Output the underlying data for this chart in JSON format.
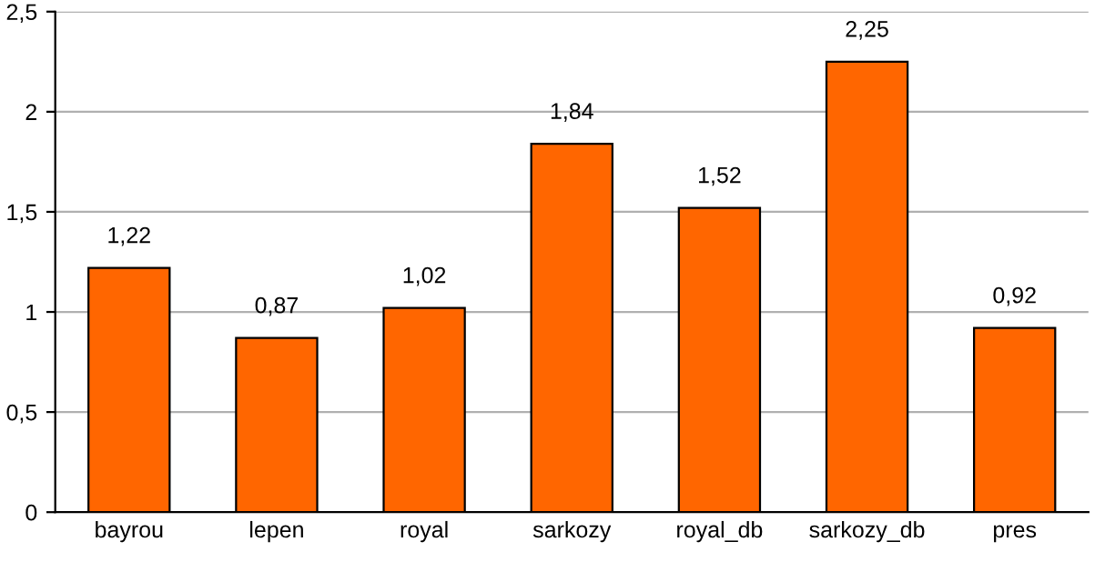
{
  "chart_data": {
    "type": "bar",
    "categories": [
      "bayrou",
      "lepen",
      "royal",
      "sarkozy",
      "royal_db",
      "sarkozy_db",
      "pres"
    ],
    "values": [
      1.22,
      0.87,
      1.02,
      1.84,
      1.52,
      2.25,
      0.92
    ],
    "value_labels": [
      "1,22",
      "0,87",
      "1,02",
      "1,84",
      "1,52",
      "2,25",
      "0,92"
    ],
    "color": "#ff6600",
    "ylim": [
      0,
      2.5
    ],
    "yticks": [
      0,
      {
        "value": 0.5,
        "label": "0,5"
      },
      1,
      {
        "value": 1.5,
        "label": "1,5"
      },
      2,
      {
        "value": 2.5,
        "label": "2,5"
      }
    ],
    "grid": "y",
    "legend": false
  }
}
